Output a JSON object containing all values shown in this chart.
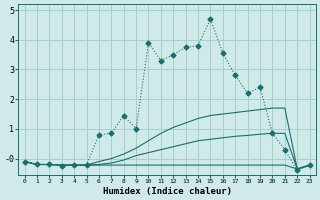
{
  "xlabel": "Humidex (Indice chaleur)",
  "bg_color": "#d0eaea",
  "grid_color": "#a8cece",
  "line_color": "#1a6e6e",
  "xlim": [
    -0.5,
    23.5
  ],
  "ylim": [
    -0.55,
    5.2
  ],
  "yticks": [
    0,
    1,
    2,
    3,
    4,
    5
  ],
  "ytick_labels": [
    "-0",
    "1",
    "2",
    "3",
    "4",
    "5"
  ],
  "xtick_labels": [
    "0",
    "1",
    "2",
    "3",
    "4",
    "5",
    "6",
    "7",
    "8",
    "9",
    "10",
    "11",
    "12",
    "13",
    "14",
    "15",
    "16",
    "17",
    "18",
    "19",
    "20",
    "21",
    "22",
    "23"
  ],
  "series": [
    {
      "x": [
        0,
        1,
        2,
        3,
        4,
        5,
        6,
        7,
        8,
        9,
        10,
        11,
        12,
        13,
        14,
        15,
        16,
        17,
        18,
        19,
        20,
        21,
        22,
        23
      ],
      "y": [
        -0.1,
        -0.2,
        -0.2,
        -0.22,
        -0.22,
        -0.22,
        -0.22,
        -0.22,
        -0.22,
        -0.22,
        -0.22,
        -0.22,
        -0.22,
        -0.22,
        -0.22,
        -0.22,
        -0.22,
        -0.22,
        -0.22,
        -0.22,
        -0.22,
        -0.22,
        -0.35,
        -0.22
      ],
      "linestyle": "-",
      "marker": null
    },
    {
      "x": [
        0,
        1,
        2,
        3,
        4,
        5,
        6,
        7,
        8,
        9,
        10,
        11,
        12,
        13,
        14,
        15,
        16,
        17,
        18,
        19,
        20,
        21,
        22,
        23
      ],
      "y": [
        -0.1,
        -0.2,
        -0.2,
        -0.22,
        -0.22,
        -0.22,
        -0.2,
        -0.15,
        -0.05,
        0.1,
        0.2,
        0.3,
        0.4,
        0.5,
        0.6,
        0.65,
        0.7,
        0.75,
        0.78,
        0.82,
        0.85,
        0.85,
        -0.35,
        -0.22
      ],
      "linestyle": "-",
      "marker": null
    },
    {
      "x": [
        0,
        1,
        2,
        3,
        4,
        5,
        6,
        7,
        8,
        9,
        10,
        11,
        12,
        13,
        14,
        15,
        16,
        17,
        18,
        19,
        20,
        21,
        22,
        23
      ],
      "y": [
        -0.1,
        -0.2,
        -0.2,
        -0.22,
        -0.22,
        -0.22,
        -0.1,
        0.0,
        0.15,
        0.35,
        0.6,
        0.85,
        1.05,
        1.2,
        1.35,
        1.45,
        1.5,
        1.55,
        1.6,
        1.65,
        1.7,
        1.7,
        -0.35,
        -0.22
      ],
      "linestyle": "-",
      "marker": null
    },
    {
      "x": [
        0,
        1,
        2,
        3,
        4,
        5,
        6,
        7,
        8,
        9,
        10,
        11,
        12,
        13,
        14,
        15,
        16,
        17,
        18,
        19,
        20,
        21,
        22,
        23
      ],
      "y": [
        -0.1,
        -0.2,
        -0.2,
        -0.25,
        -0.22,
        -0.22,
        0.8,
        0.85,
        1.45,
        1.0,
        3.9,
        3.3,
        3.5,
        3.75,
        3.8,
        4.7,
        3.55,
        2.8,
        2.2,
        2.4,
        0.85,
        0.3,
        -0.4,
        -0.22
      ],
      "linestyle": ":",
      "marker": "D",
      "markersize": 2.5
    }
  ]
}
